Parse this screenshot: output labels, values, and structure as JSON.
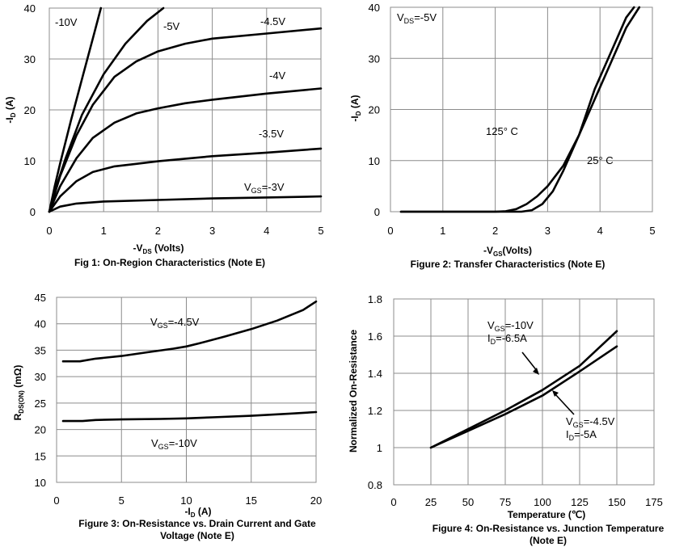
{
  "chart_data": [
    {
      "type": "line",
      "caption": "Fig 1: On-Region Characteristics (Note E)",
      "ylabel_main": "-I",
      "ylabel_sub": "D",
      "ylabel_tail": " (A)",
      "xlabel_main": "-V",
      "xlabel_sub": "DS",
      "xlabel_tail": " (Volts)",
      "xlim": [
        0,
        5
      ],
      "ylim": [
        0,
        40
      ],
      "xticks": [
        "0",
        "1",
        "2",
        "3",
        "4",
        "5"
      ],
      "yticks": [
        "0",
        "10",
        "20",
        "30",
        "40"
      ],
      "grid": true,
      "series": [
        {
          "name": "-10V",
          "x": [
            0,
            0.1,
            0.2,
            0.4,
            0.6,
            0.8,
            0.95
          ],
          "y": [
            0,
            5,
            9.5,
            18,
            26,
            34,
            40
          ]
        },
        {
          "name": "-5V",
          "x": [
            0,
            0.1,
            0.3,
            0.6,
            1.0,
            1.4,
            1.8,
            2.1
          ],
          "y": [
            0,
            4,
            10.5,
            19,
            27,
            33,
            37.5,
            40
          ]
        },
        {
          "name": "-4.5V",
          "x": [
            0,
            0.2,
            0.5,
            0.8,
            1.2,
            1.6,
            2.0,
            2.5,
            3.0,
            4.0,
            5.0
          ],
          "y": [
            0,
            7,
            15,
            21,
            26.5,
            29.5,
            31.5,
            33,
            34,
            35,
            36
          ]
        },
        {
          "name": "-4V",
          "x": [
            0,
            0.2,
            0.5,
            0.8,
            1.2,
            1.6,
            2.0,
            2.5,
            3.0,
            4.0,
            5.0
          ],
          "y": [
            0,
            5,
            10.5,
            14.5,
            17.5,
            19.3,
            20.3,
            21.3,
            22,
            23.2,
            24.2
          ]
        },
        {
          "name": "-3.5V",
          "x": [
            0,
            0.2,
            0.5,
            0.8,
            1.2,
            1.6,
            2.0,
            3.0,
            4.0,
            5.0
          ],
          "y": [
            0,
            3,
            6,
            7.8,
            8.9,
            9.4,
            9.9,
            10.9,
            11.6,
            12.4
          ]
        },
        {
          "name": "V_GS=-3V",
          "x": [
            0,
            0.2,
            0.5,
            1.0,
            2.0,
            3.0,
            4.0,
            5.0
          ],
          "y": [
            0,
            1,
            1.6,
            2.0,
            2.3,
            2.6,
            2.8,
            3.0
          ]
        }
      ],
      "labels": [
        "-10V",
        "-5V",
        "-4.5V",
        "-4V",
        "-3.5V"
      ],
      "vgs_label_main": "V",
      "vgs_label_sub": "GS",
      "vgs_label_tail": "=-3V"
    },
    {
      "type": "line",
      "caption": "Figure 2: Transfer Characteristics (Note E)",
      "ylabel_main": "-I",
      "ylabel_sub": "D",
      "ylabel_tail": " (A)",
      "xlabel_main": "-V",
      "xlabel_sub": "GS",
      "xlabel_tail": "(Volts)",
      "xlim": [
        0,
        5
      ],
      "ylim": [
        0,
        40
      ],
      "xticks": [
        "0",
        "1",
        "2",
        "3",
        "4",
        "5"
      ],
      "yticks": [
        "0",
        "10",
        "20",
        "30",
        "40"
      ],
      "grid": true,
      "annotation_main": "V",
      "annotation_sub": "DS",
      "annotation_tail": "=-5V",
      "series": [
        {
          "name": "125° C",
          "x": [
            0.2,
            1.0,
            2.0,
            2.2,
            2.4,
            2.6,
            2.8,
            3.0,
            3.3,
            3.6,
            3.9,
            4.2,
            4.5,
            4.75
          ],
          "y": [
            0,
            0,
            0,
            0.1,
            0.5,
            1.5,
            3,
            5,
            9,
            15,
            22,
            29,
            36,
            40
          ]
        },
        {
          "name": "25° C",
          "x": [
            0.2,
            1.0,
            2.0,
            2.5,
            2.7,
            2.9,
            3.1,
            3.3,
            3.6,
            3.9,
            4.2,
            4.5,
            4.65
          ],
          "y": [
            0,
            0,
            0,
            0,
            0.3,
            1.5,
            4,
            8,
            15,
            24,
            31,
            38,
            40
          ]
        }
      ]
    },
    {
      "type": "line",
      "caption_line1": "Figure 3: On-Resistance vs. Drain Current and Gate",
      "caption_line2": "Voltage (Note E)",
      "ylabel_main": "R",
      "ylabel_sub": "DS(ON)",
      "ylabel_tail": " (mΩ)",
      "xlabel_main": "-I",
      "xlabel_sub": "D",
      "xlabel_tail": " (A)",
      "xlim": [
        0,
        20
      ],
      "ylim": [
        10,
        45
      ],
      "xticks": [
        "0",
        "5",
        "10",
        "15",
        "20"
      ],
      "yticks": [
        "10",
        "15",
        "20",
        "25",
        "30",
        "35",
        "40",
        "45"
      ],
      "grid": true,
      "series": [
        {
          "name": "V_GS=-4.5V",
          "x": [
            0.5,
            1.0,
            1.8,
            3,
            5,
            7,
            9,
            10,
            11,
            13,
            15,
            17,
            19,
            20
          ],
          "y": [
            32.9,
            32.9,
            32.9,
            33.4,
            33.9,
            34.6,
            35.3,
            35.7,
            36.3,
            37.6,
            39.0,
            40.6,
            42.6,
            44.2
          ]
        },
        {
          "name": "V_GS=-10V",
          "x": [
            0.5,
            2,
            3,
            5,
            8,
            10,
            12,
            15,
            18,
            20
          ],
          "y": [
            21.6,
            21.6,
            21.8,
            21.9,
            22.0,
            22.1,
            22.3,
            22.6,
            23.0,
            23.3
          ]
        }
      ],
      "label_a_main": "V",
      "label_a_sub": "GS",
      "label_a_tail": "=-4.5V",
      "label_b_main": "V",
      "label_b_sub": "GS",
      "label_b_tail": "=-10V"
    },
    {
      "type": "line",
      "caption_line1": "Figure 4: On-Resistance vs. Junction Temperature",
      "caption_line2": "(Note E)",
      "ylabel": "Normalized On-Resistance",
      "xlabel": "Temperature (℃)",
      "xlim": [
        0,
        175
      ],
      "ylim": [
        0.8,
        1.8
      ],
      "xticks": [
        "0",
        "25",
        "50",
        "75",
        "100",
        "125",
        "150",
        "175"
      ],
      "yticks": [
        "0.8",
        "1",
        "1.2",
        "1.4",
        "1.6",
        "1.8"
      ],
      "grid": true,
      "series": [
        {
          "name": "V_GS=-10V, I_D=-6.5A",
          "x": [
            25,
            50,
            75,
            100,
            125,
            150
          ],
          "y": [
            1.0,
            1.1,
            1.2,
            1.31,
            1.44,
            1.627
          ]
        },
        {
          "name": "V_GS=-4.5V, I_D=-5A",
          "x": [
            25,
            50,
            75,
            100,
            125,
            150
          ],
          "y": [
            1.0,
            1.09,
            1.18,
            1.28,
            1.41,
            1.545
          ]
        }
      ],
      "label_a1_main": "V",
      "label_a1_sub": "GS",
      "label_a1_tail": "=-10V",
      "label_a2_main": "I",
      "label_a2_sub": "D",
      "label_a2_tail": "=-6.5A",
      "label_b1_main": "V",
      "label_b1_sub": "GS",
      "label_b1_tail": "=-4.5V",
      "label_b2_main": "I",
      "label_b2_sub": "D",
      "label_b2_tail": "=-5A"
    }
  ]
}
